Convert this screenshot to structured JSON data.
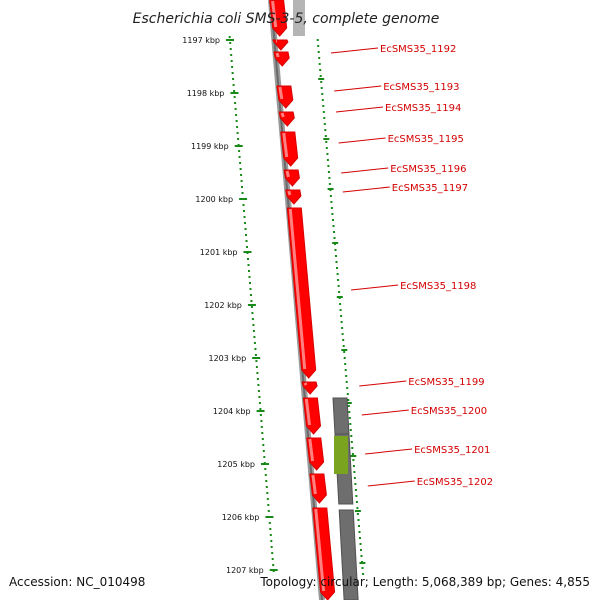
{
  "title": "Escherichia coli SMS-3-5, complete genome",
  "footer": {
    "accession": "Accession: NC_010498",
    "topology": "Topology: circular; Length: 5,068,389 bp; Genes: 4,855"
  },
  "colors": {
    "gene_forward": "#ff0000",
    "gene_reverse": "#6e6e6e",
    "gene_highlight": "#7aa320",
    "backbone": "#7f7f7f",
    "tick_dots": "#178a17",
    "gene_label": "#d40000"
  },
  "ticks": [
    {
      "label": "1197 kbp",
      "kbp": 1197
    },
    {
      "label": "1198 kbp",
      "kbp": 1198
    },
    {
      "label": "1199 kbp",
      "kbp": 1199
    },
    {
      "label": "1200 kbp",
      "kbp": 1200
    },
    {
      "label": "1201 kbp",
      "kbp": 1201
    },
    {
      "label": "1202 kbp",
      "kbp": 1202
    },
    {
      "label": "1203 kbp",
      "kbp": 1203
    },
    {
      "label": "1204 kbp",
      "kbp": 1204
    },
    {
      "label": "1205 kbp",
      "kbp": 1205
    },
    {
      "label": "1206 kbp",
      "kbp": 1206
    },
    {
      "label": "1207 kbp",
      "kbp": 1207
    }
  ],
  "genes": [
    {
      "label": "EcSMS35_1192"
    },
    {
      "label": "EcSMS35_1193"
    },
    {
      "label": "EcSMS35_1194"
    },
    {
      "label": "EcSMS35_1195"
    },
    {
      "label": "EcSMS35_1196"
    },
    {
      "label": "EcSMS35_1197"
    },
    {
      "label": "EcSMS35_1198"
    },
    {
      "label": "EcSMS35_1199"
    },
    {
      "label": "EcSMS35_1200"
    },
    {
      "label": "EcSMS35_1201"
    },
    {
      "label": "EcSMS35_1202"
    }
  ]
}
